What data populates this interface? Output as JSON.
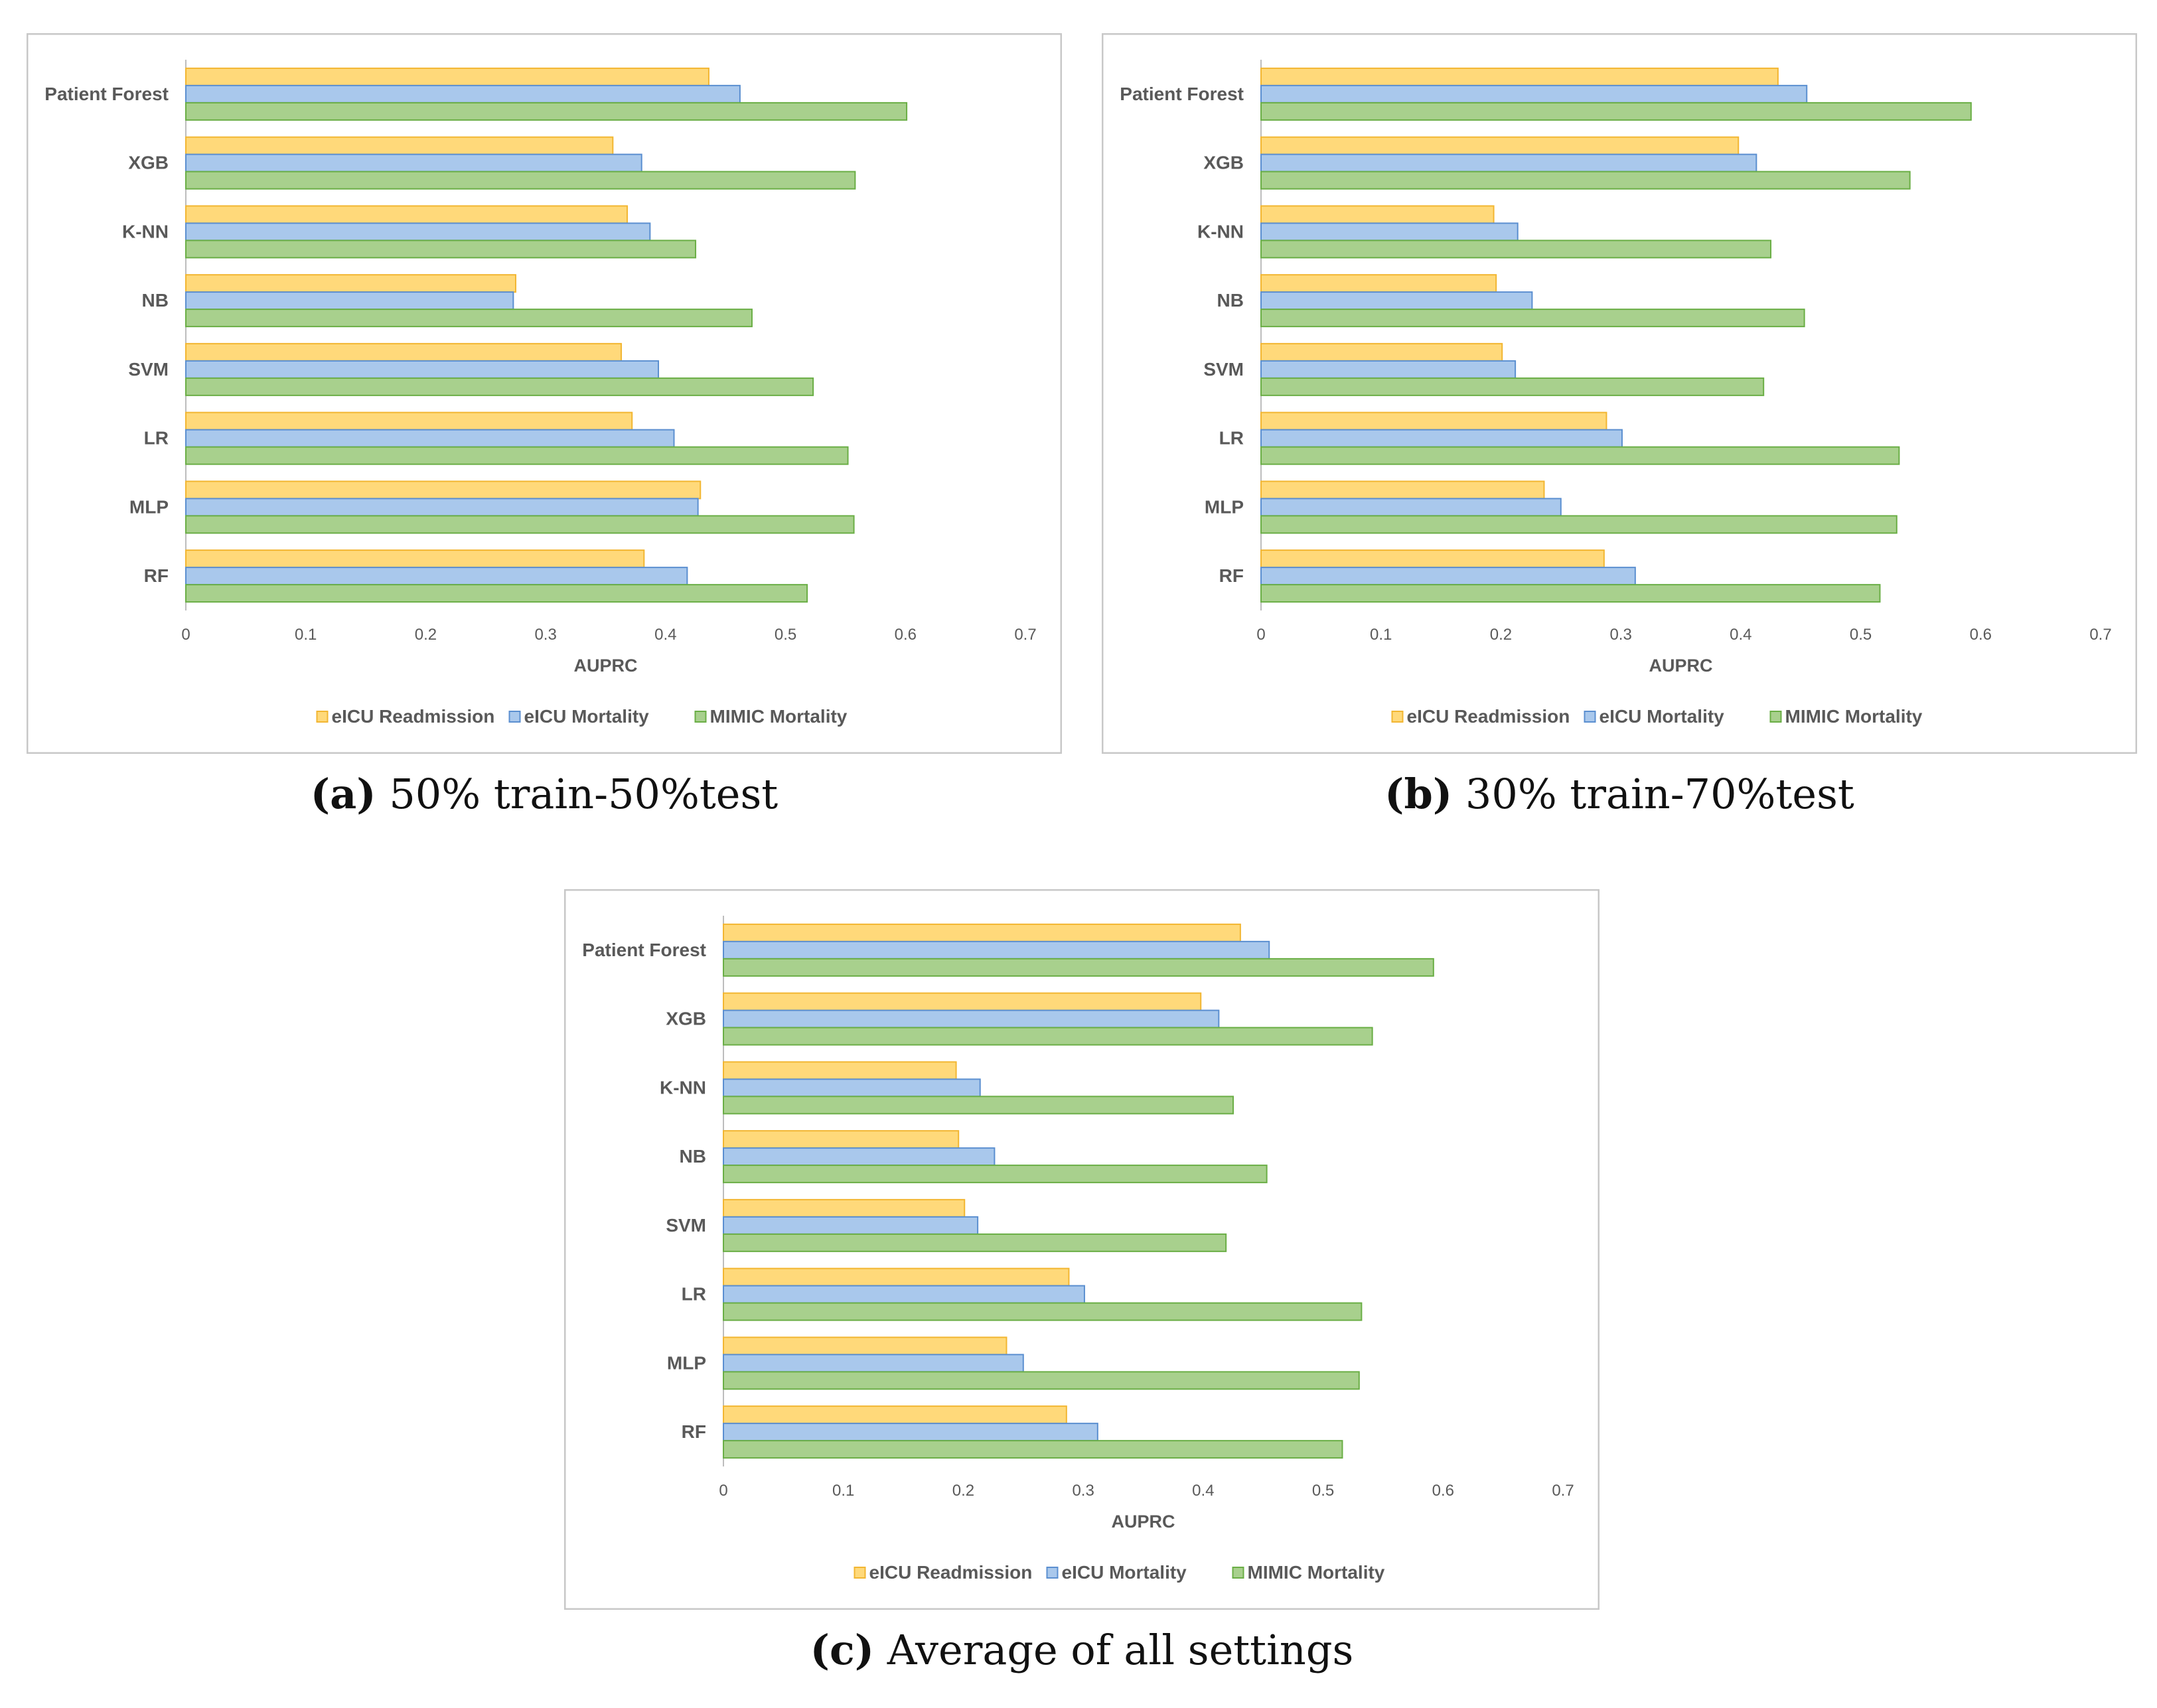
{
  "colors": {
    "readmission_fill": "#FFD97A",
    "readmission_stroke": "#F2B632",
    "mortality_fill": "#A9C8EC",
    "mortality_stroke": "#5B8FD0",
    "mimic_fill": "#A8D08D",
    "mimic_stroke": "#6AAE45",
    "frame": "#C8C8C8",
    "axis": "#BDBDBD",
    "text": "#595959"
  },
  "chart_data": [
    {
      "type": "bar",
      "orientation": "horizontal",
      "caption_letter": "(a)",
      "caption_text": "50% train-50%test",
      "categories": [
        "Patient Forest",
        "XGB",
        "K-NN",
        "NB",
        "SVM",
        "LR",
        "MLP",
        "RF"
      ],
      "series": [
        {
          "name": "eICU Readmission",
          "values": [
            0.436,
            0.356,
            0.368,
            0.275,
            0.363,
            0.372,
            0.429,
            0.382
          ]
        },
        {
          "name": "eICU Mortality",
          "values": [
            0.462,
            0.38,
            0.387,
            0.273,
            0.394,
            0.407,
            0.427,
            0.418
          ]
        },
        {
          "name": "MIMIC Mortality",
          "values": [
            0.601,
            0.558,
            0.425,
            0.472,
            0.523,
            0.552,
            0.557,
            0.518
          ]
        }
      ],
      "xlabel": "AUPRC",
      "xlim": [
        0,
        0.7
      ],
      "xticks": [
        "0",
        "0.1",
        "0.2",
        "0.3",
        "0.4",
        "0.5",
        "0.6",
        "0.7"
      ],
      "legend_position": "bottom"
    },
    {
      "type": "bar",
      "orientation": "horizontal",
      "caption_letter": "(b)",
      "caption_text": "30% train-70%test",
      "categories": [
        "Patient Forest",
        "XGB",
        "K-NN",
        "NB",
        "SVM",
        "LR",
        "MLP",
        "RF"
      ],
      "series": [
        {
          "name": "eICU Readmission",
          "values": [
            0.431,
            0.398,
            0.194,
            0.196,
            0.201,
            0.288,
            0.236,
            0.286
          ]
        },
        {
          "name": "eICU Mortality",
          "values": [
            0.455,
            0.413,
            0.214,
            0.226,
            0.212,
            0.301,
            0.25,
            0.312
          ]
        },
        {
          "name": "MIMIC Mortality",
          "values": [
            0.592,
            0.541,
            0.425,
            0.453,
            0.419,
            0.532,
            0.53,
            0.516
          ]
        }
      ],
      "xlabel": "AUPRC",
      "xlim": [
        0,
        0.7
      ],
      "xticks": [
        "0",
        "0.1",
        "0.2",
        "0.3",
        "0.4",
        "0.5",
        "0.6",
        "0.7"
      ],
      "legend_position": "bottom"
    },
    {
      "type": "bar",
      "orientation": "horizontal",
      "caption_letter": "(c)",
      "caption_text": "Average of all settings",
      "categories": [
        "Patient Forest",
        "XGB",
        "K-NN",
        "NB",
        "SVM",
        "LR",
        "MLP",
        "RF"
      ],
      "series": [
        {
          "name": "eICU Readmission",
          "values": [
            0.431,
            0.398,
            0.194,
            0.196,
            0.201,
            0.288,
            0.236,
            0.286
          ]
        },
        {
          "name": "eICU Mortality",
          "values": [
            0.455,
            0.413,
            0.214,
            0.226,
            0.212,
            0.301,
            0.25,
            0.312
          ]
        },
        {
          "name": "MIMIC Mortality",
          "values": [
            0.592,
            0.541,
            0.425,
            0.453,
            0.419,
            0.532,
            0.53,
            0.516
          ]
        }
      ],
      "xlabel": "AUPRC",
      "xlim": [
        0,
        0.7
      ],
      "xticks": [
        "0",
        "0.1",
        "0.2",
        "0.3",
        "0.4",
        "0.5",
        "0.6",
        "0.7"
      ],
      "legend_position": "bottom"
    }
  ]
}
